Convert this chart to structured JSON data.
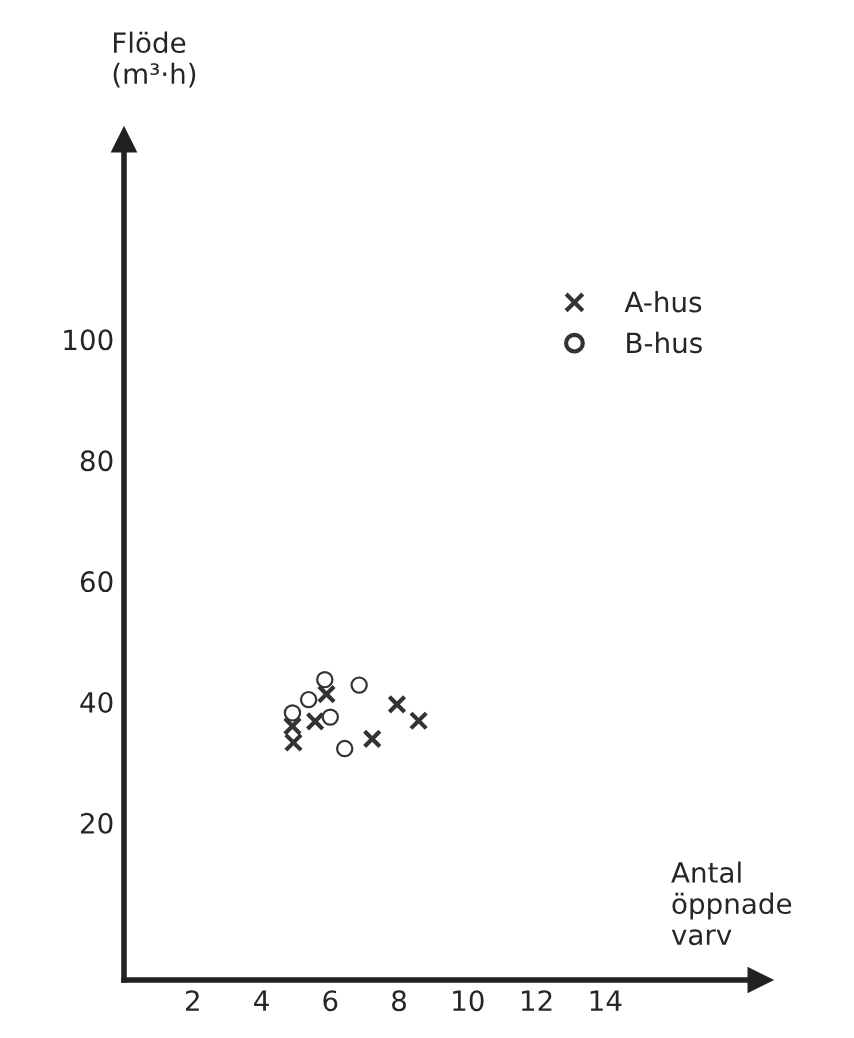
{
  "chart_data": {
    "type": "scatter",
    "xlabel": "Antal\nöppnade\nvarv",
    "ylabel": "Flöde\n(m³·h)",
    "xlim": [
      0,
      18.5
    ],
    "ylim": [
      -6,
      133
    ],
    "xticks": [
      2,
      4,
      6,
      8,
      10,
      12,
      14
    ],
    "yticks": [
      20,
      40,
      60,
      80,
      100
    ],
    "grid": false,
    "legend": "top right",
    "series": [
      {
        "name": "A-hus",
        "color": "#333333",
        "marker": "cross",
        "x": [
          5.89,
          7.94,
          8.57,
          4.9,
          5.56,
          4.93,
          7.22
        ],
        "values": [
          41.3,
          39.6,
          36.9,
          36.0,
          36.8,
          33.3,
          33.9
        ]
      },
      {
        "name": "B-hus",
        "color": "#333333",
        "marker": "circle",
        "x": [
          5.84,
          6.84,
          5.37,
          4.9,
          6.0,
          6.42
        ],
        "values": [
          43.7,
          42.8,
          40.4,
          38.2,
          37.5,
          32.3
        ]
      }
    ]
  }
}
